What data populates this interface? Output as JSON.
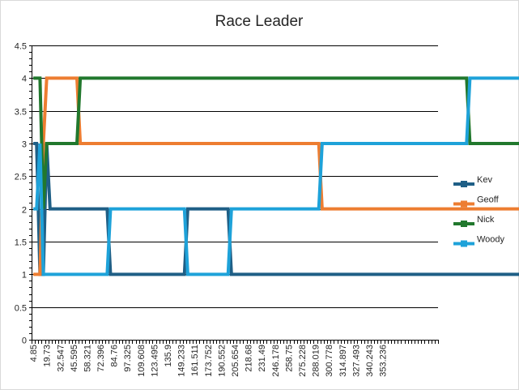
{
  "chart_data": {
    "type": "line",
    "title": "Race Leader",
    "xlabel": "",
    "ylabel": "",
    "ylim": [
      0,
      4.5
    ],
    "y_ticks": [
      "0",
      "0.5",
      "1",
      "1.5",
      "2",
      "2.5",
      "3",
      "3.5",
      "4",
      "4.5"
    ],
    "y_tick_values": [
      0,
      0.5,
      1,
      1.5,
      2,
      2.5,
      3,
      3.5,
      4,
      4.5
    ],
    "x_tick_labels": [
      "4.85",
      "19.73",
      "32.547",
      "45.595",
      "58.321",
      "72.396",
      "84.76",
      "97.325",
      "109.608",
      "123.495",
      "135.9",
      "149.233",
      "161.511",
      "173.752",
      "190.552",
      "205.654",
      "218.68",
      "231.49",
      "246.178",
      "258.75",
      "275.228",
      "288.019",
      "300.778",
      "314.897",
      "327.493",
      "340.243",
      "353.236"
    ],
    "x_category_count": 121,
    "grid": true,
    "legend_position": "right",
    "series": [
      {
        "name": "Kev",
        "color": "#1f5f86",
        "points": [
          [
            0,
            3
          ],
          [
            1,
            3
          ],
          [
            2,
            1
          ],
          [
            3,
            1
          ],
          [
            4,
            3
          ],
          [
            5,
            2
          ],
          [
            22,
            2
          ],
          [
            23,
            1
          ],
          [
            45,
            1
          ],
          [
            46,
            2
          ],
          [
            58,
            2
          ],
          [
            59,
            1
          ],
          [
            152,
            1
          ]
        ]
      },
      {
        "name": "Geoff",
        "color": "#ed7d31",
        "points": [
          [
            0,
            1
          ],
          [
            1,
            1
          ],
          [
            2,
            1
          ],
          [
            3,
            3
          ],
          [
            4,
            4
          ],
          [
            13,
            4
          ],
          [
            14,
            3
          ],
          [
            85,
            3
          ],
          [
            86,
            2
          ],
          [
            156,
            2
          ]
        ]
      },
      {
        "name": "Nick",
        "color": "#21782d",
        "points": [
          [
            0,
            4
          ],
          [
            1,
            4
          ],
          [
            2,
            4
          ],
          [
            3,
            2
          ],
          [
            4,
            3
          ],
          [
            13,
            3
          ],
          [
            14,
            4
          ],
          [
            129,
            4
          ],
          [
            130,
            3
          ],
          [
            162,
            3
          ]
        ]
      },
      {
        "name": "Woody",
        "color": "#1ea2d9",
        "points": [
          [
            0,
            2
          ],
          [
            1,
            2
          ],
          [
            2,
            3
          ],
          [
            3,
            1
          ],
          [
            4,
            1
          ],
          [
            22,
            1
          ],
          [
            23,
            2
          ],
          [
            45,
            2
          ],
          [
            46,
            1
          ],
          [
            58,
            1
          ],
          [
            59,
            2
          ],
          [
            85,
            2
          ],
          [
            86,
            3
          ],
          [
            129,
            3
          ],
          [
            130,
            4
          ],
          [
            166,
            4
          ]
        ]
      }
    ]
  }
}
